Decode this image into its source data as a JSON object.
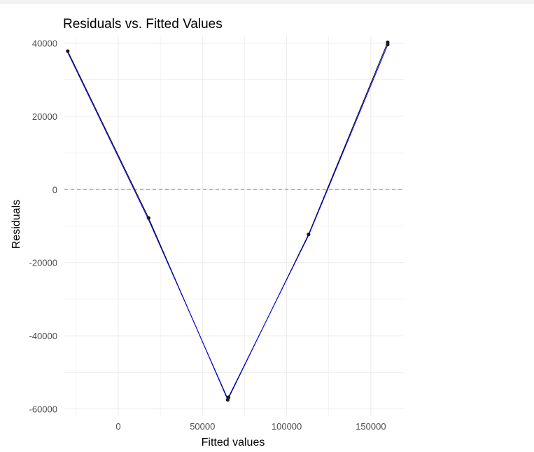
{
  "chart_data": {
    "type": "scatter",
    "title": "Residuals vs. Fitted Values",
    "xlabel": "Fitted values",
    "ylabel": "Residuals",
    "xlim": [
      -32000,
      170000
    ],
    "ylim": [
      -62000,
      42000
    ],
    "x_ticks": [
      0,
      50000,
      100000,
      150000
    ],
    "y_ticks": [
      -60000,
      -40000,
      -20000,
      0,
      20000,
      40000
    ],
    "x_tick_labels": [
      "0",
      "50000",
      "100000",
      "150000"
    ],
    "y_tick_labels": [
      "-60000",
      "-40000",
      "-20000",
      "0",
      "20000",
      "40000"
    ],
    "points": [
      {
        "x": -30000,
        "y": 37800
      },
      {
        "x": 18000,
        "y": -7800
      },
      {
        "x": 65000,
        "y": -57500
      },
      {
        "x": 65500,
        "y": -56800
      },
      {
        "x": 113000,
        "y": -12300
      },
      {
        "x": 160000,
        "y": 40200
      },
      {
        "x": 160000,
        "y": 39600
      }
    ],
    "connecting_line": {
      "color": "#000000",
      "x": [
        -30000,
        18000,
        65000,
        113000,
        160000
      ],
      "y": [
        37800,
        -7800,
        -57500,
        -12300,
        40200
      ]
    },
    "smooth_line": {
      "color": "#0000ff",
      "x": [
        -30000,
        18000,
        65000,
        113000,
        160000
      ],
      "y": [
        37400,
        -8300,
        -57200,
        -12600,
        39500
      ]
    },
    "reference_line": {
      "y": 0,
      "style": "dashed",
      "color": "#999999"
    },
    "grid": true,
    "point_color": "#1a1a1a",
    "gridline_color": "#ebebeb"
  }
}
